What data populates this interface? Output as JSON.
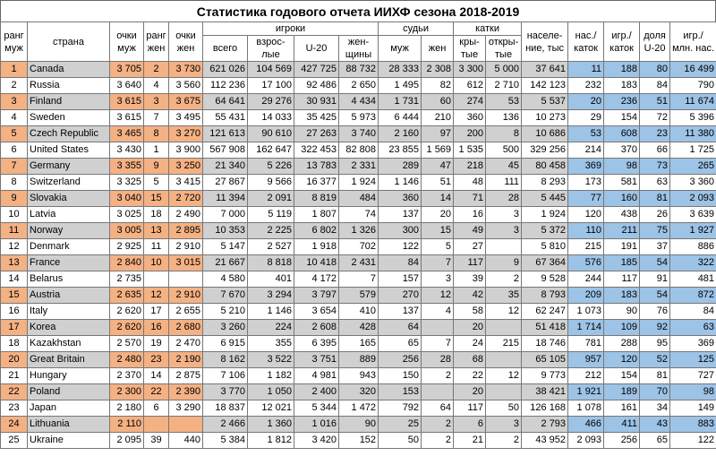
{
  "title": "Статистика годового отчета ИИХФ сезона 2018-2019",
  "header": {
    "rank_men": "ранг муж",
    "country": "страна",
    "points_men": "очки муж",
    "rank_women": "ранг жен",
    "points_women": "очки жен",
    "players": "игроки",
    "players_total": "всего",
    "players_adults": "взрос-лые",
    "players_u20": "U-20",
    "players_women": "жен-щины",
    "referees": "судьи",
    "ref_men": "муж",
    "ref_women": "жен",
    "rinks": "катки",
    "rinks_covered": "кры-тые",
    "rinks_open": "откры-тые",
    "population": "населе-ние, тыс",
    "pop_per_rink": "нас./ каток",
    "players_per_rink": "игр./ каток",
    "u20_share": "доля U-20",
    "players_per_mln": "игр./ млн. нас."
  },
  "rows": [
    [
      "1",
      "Canada",
      "3 705",
      "2",
      "3 730",
      "621 026",
      "104 569",
      "427 725",
      "88 732",
      "28 333",
      "2 308",
      "3 300",
      "5 000",
      "37 641",
      "11",
      "188",
      "80",
      "16 499"
    ],
    [
      "2",
      "Russia",
      "3 640",
      "4",
      "3 560",
      "112 236",
      "17 100",
      "92 486",
      "2 650",
      "1 495",
      "82",
      "612",
      "2 710",
      "142 123",
      "232",
      "183",
      "84",
      "790"
    ],
    [
      "3",
      "Finland",
      "3 615",
      "3",
      "3 675",
      "64 641",
      "29 276",
      "30 931",
      "4 434",
      "1 731",
      "60",
      "274",
      "53",
      "5 537",
      "20",
      "236",
      "51",
      "11 674"
    ],
    [
      "4",
      "Sweden",
      "3 615",
      "7",
      "3 495",
      "55 431",
      "14 033",
      "35 425",
      "5 973",
      "6 444",
      "210",
      "360",
      "136",
      "10 273",
      "29",
      "154",
      "72",
      "5 396"
    ],
    [
      "5",
      "Czech Republic",
      "3 465",
      "8",
      "3 270",
      "121 613",
      "90 610",
      "27 263",
      "3 740",
      "2 160",
      "97",
      "200",
      "8",
      "10 686",
      "53",
      "608",
      "23",
      "11 380"
    ],
    [
      "6",
      "United States",
      "3 430",
      "1",
      "3 900",
      "567 908",
      "162 647",
      "322 453",
      "82 808",
      "23 855",
      "1 569",
      "1 535",
      "500",
      "329 256",
      "214",
      "370",
      "66",
      "1 725"
    ],
    [
      "7",
      "Germany",
      "3 355",
      "9",
      "3 250",
      "21 340",
      "5 226",
      "13 783",
      "2 331",
      "289",
      "47",
      "218",
      "45",
      "80 458",
      "369",
      "98",
      "73",
      "265"
    ],
    [
      "8",
      "Switzerland",
      "3 325",
      "5",
      "3 415",
      "27 867",
      "9 566",
      "16 377",
      "1 924",
      "1 146",
      "51",
      "48",
      "111",
      "8 293",
      "173",
      "581",
      "63",
      "3 360"
    ],
    [
      "9",
      "Slovakia",
      "3 040",
      "15",
      "2 720",
      "11 394",
      "2 091",
      "8 819",
      "484",
      "360",
      "14",
      "71",
      "28",
      "5 445",
      "77",
      "160",
      "81",
      "2 093"
    ],
    [
      "10",
      "Latvia",
      "3 025",
      "18",
      "2 490",
      "7 000",
      "5 119",
      "1 807",
      "74",
      "137",
      "20",
      "16",
      "3",
      "1 924",
      "120",
      "438",
      "26",
      "3 639"
    ],
    [
      "11",
      "Norway",
      "3 005",
      "13",
      "2 895",
      "10 353",
      "2 225",
      "6 802",
      "1 326",
      "300",
      "15",
      "49",
      "3",
      "5 372",
      "110",
      "211",
      "75",
      "1 927"
    ],
    [
      "12",
      "Denmark",
      "2 925",
      "11",
      "2 910",
      "5 147",
      "2 527",
      "1 918",
      "702",
      "122",
      "5",
      "27",
      "",
      "5 810",
      "215",
      "191",
      "37",
      "886"
    ],
    [
      "13",
      "France",
      "2 840",
      "10",
      "3 015",
      "21 667",
      "8 818",
      "10 418",
      "2 431",
      "84",
      "7",
      "117",
      "9",
      "67 364",
      "576",
      "185",
      "54",
      "322"
    ],
    [
      "14",
      "Belarus",
      "2 735",
      "",
      "",
      "4 580",
      "401",
      "4 172",
      "7",
      "157",
      "3",
      "39",
      "2",
      "9 528",
      "244",
      "117",
      "91",
      "481"
    ],
    [
      "15",
      "Austria",
      "2 635",
      "12",
      "2 910",
      "7 670",
      "3 294",
      "3 797",
      "579",
      "270",
      "12",
      "42",
      "35",
      "8 793",
      "209",
      "183",
      "54",
      "872"
    ],
    [
      "16",
      "Italy",
      "2 620",
      "17",
      "2 655",
      "5 210",
      "1 146",
      "3 654",
      "410",
      "137",
      "4",
      "58",
      "12",
      "62 247",
      "1 073",
      "90",
      "76",
      "84"
    ],
    [
      "17",
      "Korea",
      "2 620",
      "16",
      "2 680",
      "3 260",
      "224",
      "2 608",
      "428",
      "64",
      "",
      "20",
      "",
      "51 418",
      "1 714",
      "109",
      "92",
      "63"
    ],
    [
      "18",
      "Kazakhstan",
      "2 570",
      "19",
      "2 470",
      "6 915",
      "355",
      "6 395",
      "165",
      "65",
      "7",
      "24",
      "215",
      "18 746",
      "781",
      "288",
      "95",
      "369"
    ],
    [
      "20",
      "Great Britain",
      "2 480",
      "23",
      "2 190",
      "8 162",
      "3 522",
      "3 751",
      "889",
      "256",
      "28",
      "68",
      "",
      "65 105",
      "957",
      "120",
      "52",
      "125"
    ],
    [
      "21",
      "Hungary",
      "2 370",
      "14",
      "2 875",
      "7 106",
      "1 182",
      "4 981",
      "943",
      "150",
      "2",
      "22",
      "12",
      "9 773",
      "212",
      "154",
      "81",
      "727"
    ],
    [
      "22",
      "Poland",
      "2 300",
      "22",
      "2 390",
      "3 770",
      "1 050",
      "2 400",
      "320",
      "153",
      "",
      "20",
      "",
      "38 421",
      "1 921",
      "189",
      "70",
      "98"
    ],
    [
      "23",
      "Japan",
      "2 180",
      "6",
      "3 290",
      "18 837",
      "12 021",
      "5 344",
      "1 472",
      "792",
      "64",
      "117",
      "50",
      "126 168",
      "1 078",
      "161",
      "34",
      "149"
    ],
    [
      "24",
      "Lithuania",
      "2 110",
      "",
      "",
      "2 466",
      "1 360",
      "1 016",
      "90",
      "25",
      "2",
      "6",
      "3",
      "2 793",
      "466",
      "411",
      "43",
      "883"
    ],
    [
      "25",
      "Ukraine",
      "2 095",
      "39",
      "440",
      "5 384",
      "1 812",
      "3 420",
      "152",
      "50",
      "2",
      "21",
      "2",
      "43 952",
      "2 093",
      "256",
      "65",
      "122"
    ]
  ],
  "colors": {
    "orange": "#f4b183",
    "gray": "#d0d0d0",
    "blue": "#9dc3e6"
  }
}
